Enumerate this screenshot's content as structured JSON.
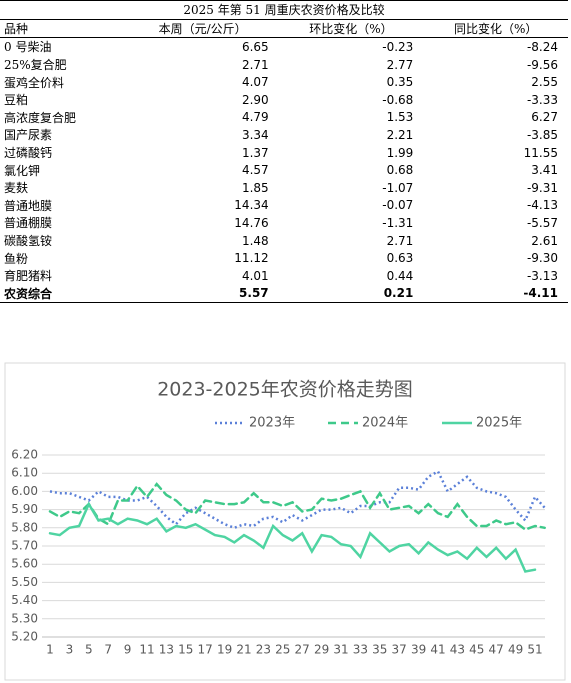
{
  "table": {
    "title": "2025 年第 51 周重庆农资价格及比较",
    "headers": [
      "品种",
      "本周（元/公斤）",
      "环比变化（%）",
      "同比变化（%）"
    ],
    "rows": [
      [
        "0 号柴油",
        "6.65",
        "-0.23",
        "-8.24"
      ],
      [
        "25%复合肥",
        "2.71",
        "2.77",
        "-9.56"
      ],
      [
        "蛋鸡全价料",
        "4.07",
        "0.35",
        "2.55"
      ],
      [
        "豆粕",
        "2.90",
        "-0.68",
        "-3.33"
      ],
      [
        "高浓度复合肥",
        "4.79",
        "1.53",
        "6.27"
      ],
      [
        "国产尿素",
        "3.34",
        "2.21",
        "-3.85"
      ],
      [
        "过磷酸钙",
        "1.37",
        "1.99",
        "11.55"
      ],
      [
        "氯化钾",
        "4.57",
        "0.68",
        "3.41"
      ],
      [
        "麦麸",
        "1.85",
        "-1.07",
        "-9.31"
      ],
      [
        "普通地膜",
        "14.34",
        "-0.07",
        "-4.13"
      ],
      [
        "普通棚膜",
        "14.76",
        "-1.31",
        "-5.57"
      ],
      [
        "碳酸氢铵",
        "1.48",
        "2.71",
        "2.61"
      ],
      [
        "鱼粉",
        "11.12",
        "0.63",
        "-9.30"
      ],
      [
        "育肥猪料",
        "4.01",
        "0.44",
        "-3.13"
      ],
      [
        "农资综合",
        "5.57",
        "0.21",
        "-4.11"
      ]
    ]
  },
  "chart_data": {
    "type": "line",
    "title": "2023-2025年农资价格走势图",
    "legend": "top",
    "grid": true,
    "categories": [
      1,
      null,
      3,
      null,
      5,
      null,
      7,
      null,
      9,
      null,
      11,
      null,
      13,
      null,
      15,
      null,
      17,
      null,
      19,
      null,
      21,
      null,
      23,
      null,
      25,
      null,
      27,
      null,
      29,
      null,
      31,
      null,
      33,
      null,
      35,
      null,
      37,
      null,
      39,
      null,
      41,
      null,
      43,
      null,
      45,
      null,
      47,
      null,
      49,
      null,
      51,
      null
    ],
    "ylim": [
      5.2,
      6.2
    ],
    "yticks": [
      {
        "value": 5.2,
        "label": "5.20"
      },
      {
        "value": 5.3,
        "label": "5.30"
      },
      {
        "value": 5.4,
        "label": "5.40"
      },
      {
        "value": 5.5,
        "label": "5.50"
      },
      {
        "value": 5.6,
        "label": "5.60"
      },
      {
        "value": 5.7,
        "label": "5.70"
      },
      {
        "value": 5.8,
        "label": "5.80"
      },
      {
        "value": 5.9,
        "label": "5.90"
      },
      {
        "value": 6.0,
        "label": "6.00"
      },
      {
        "value": 6.1,
        "label": "6.10"
      },
      {
        "value": 6.2,
        "label": "6.20"
      }
    ],
    "series": [
      {
        "name": "2023年",
        "color": "#5b80d8",
        "style": "dotted",
        "values": [
          6.0,
          5.99,
          5.99,
          5.97,
          5.95,
          6.0,
          5.97,
          5.97,
          5.95,
          5.95,
          5.97,
          5.92,
          5.86,
          5.82,
          5.88,
          5.91,
          5.88,
          5.85,
          5.82,
          5.8,
          5.82,
          5.81,
          5.85,
          5.86,
          5.83,
          5.87,
          5.84,
          5.87,
          5.9,
          5.9,
          5.91,
          5.88,
          5.92,
          5.92,
          5.94,
          5.94,
          6.02,
          6.02,
          6.01,
          6.08,
          6.11,
          6.0,
          6.04,
          6.08,
          6.02,
          6.0,
          5.99,
          5.97,
          5.9,
          5.84,
          5.97,
          5.91
        ]
      },
      {
        "name": "2024年",
        "color": "#3ec98a",
        "style": "dashed",
        "values": [
          5.89,
          5.86,
          5.89,
          5.88,
          5.93,
          5.85,
          5.82,
          5.95,
          5.95,
          6.03,
          5.97,
          6.04,
          5.98,
          5.95,
          5.9,
          5.88,
          5.95,
          5.94,
          5.93,
          5.93,
          5.94,
          5.99,
          5.94,
          5.94,
          5.92,
          5.94,
          5.89,
          5.9,
          5.96,
          5.95,
          5.96,
          5.98,
          6.0,
          5.91,
          5.99,
          5.9,
          5.91,
          5.92,
          5.88,
          5.93,
          5.88,
          5.86,
          5.93,
          5.86,
          5.81,
          5.81,
          5.84,
          5.82,
          5.83,
          5.79,
          5.81,
          5.8
        ]
      },
      {
        "name": "2025年",
        "color": "#4fd4a2",
        "style": "solid",
        "values": [
          5.77,
          5.76,
          5.8,
          5.81,
          5.93,
          5.84,
          5.85,
          5.82,
          5.85,
          5.84,
          5.82,
          5.85,
          5.78,
          5.81,
          5.8,
          5.82,
          5.79,
          5.76,
          5.75,
          5.72,
          5.76,
          5.73,
          5.69,
          5.81,
          5.76,
          5.73,
          5.77,
          5.67,
          5.76,
          5.75,
          5.71,
          5.7,
          5.64,
          5.77,
          5.72,
          5.67,
          5.7,
          5.71,
          5.66,
          5.72,
          5.68,
          5.65,
          5.67,
          5.63,
          5.69,
          5.64,
          5.69,
          5.63,
          5.68,
          5.56,
          5.57,
          null
        ]
      }
    ]
  }
}
